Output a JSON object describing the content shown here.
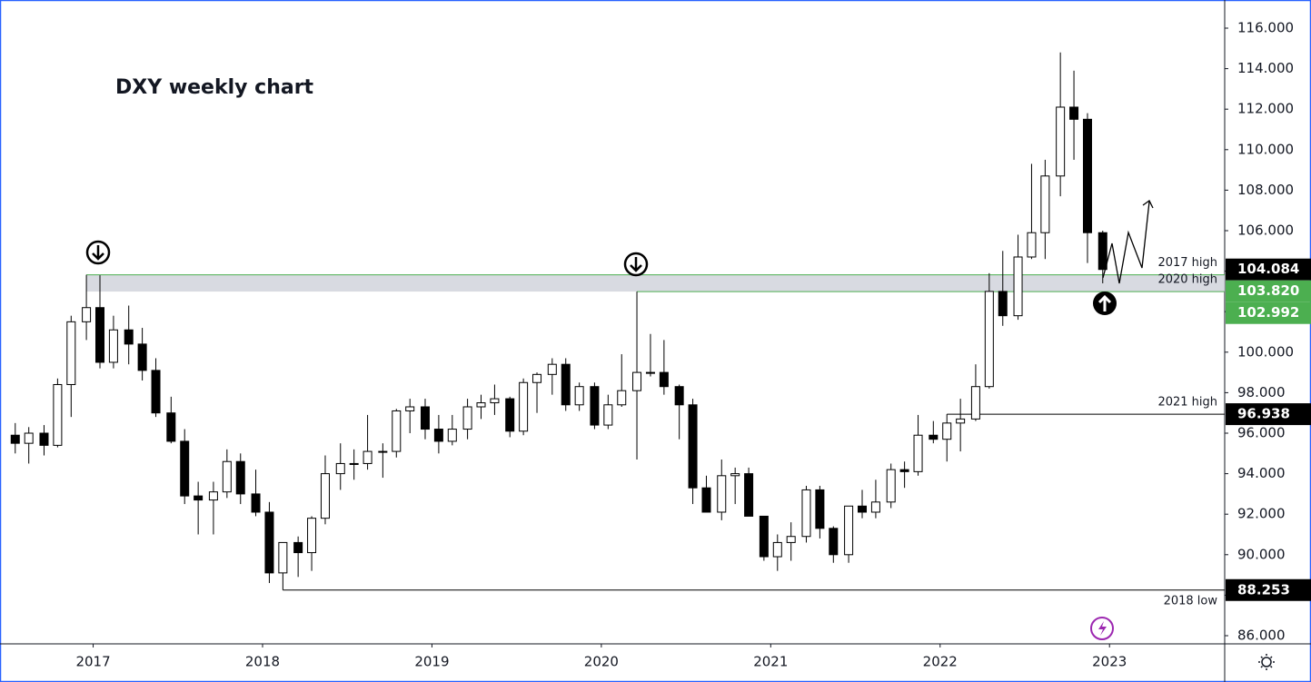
{
  "chart_data": {
    "type": "candlestick",
    "title": "DXY weekly chart",
    "x": [
      2016.54,
      2016.62,
      2016.71,
      2016.79,
      2016.87,
      2016.96,
      2017.04,
      2017.12,
      2017.21,
      2017.29,
      2017.37,
      2017.46,
      2017.54,
      2017.62,
      2017.71,
      2017.79,
      2017.87,
      2017.96,
      2018.04,
      2018.12,
      2018.21,
      2018.29,
      2018.37,
      2018.46,
      2018.54,
      2018.62,
      2018.71,
      2018.79,
      2018.87,
      2018.96,
      2019.04,
      2019.12,
      2019.21,
      2019.29,
      2019.37,
      2019.46,
      2019.54,
      2019.62,
      2019.71,
      2019.79,
      2019.87,
      2019.96,
      2020.04,
      2020.12,
      2020.21,
      2020.29,
      2020.37,
      2020.46,
      2020.54,
      2020.62,
      2020.71,
      2020.79,
      2020.87,
      2020.96,
      2021.04,
      2021.12,
      2021.21,
      2021.29,
      2021.37,
      2021.46,
      2021.54,
      2021.62,
      2021.71,
      2021.79,
      2021.87,
      2021.96,
      2022.04,
      2022.12,
      2022.21,
      2022.29,
      2022.37,
      2022.46,
      2022.54,
      2022.62,
      2022.71,
      2022.79,
      2022.87,
      2022.96
    ],
    "open": [
      95.9,
      95.5,
      96.0,
      95.4,
      98.4,
      101.5,
      102.2,
      99.5,
      101.1,
      100.4,
      99.1,
      97.0,
      95.6,
      92.9,
      92.7,
      93.1,
      94.6,
      93.0,
      92.1,
      89.1,
      90.6,
      90.1,
      91.8,
      94.0,
      94.5,
      94.5,
      95.1,
      95.1,
      97.1,
      97.3,
      96.2,
      95.6,
      96.2,
      97.3,
      97.5,
      97.7,
      96.1,
      98.5,
      98.9,
      99.4,
      97.4,
      98.3,
      96.4,
      97.4,
      98.1,
      99.0,
      99.0,
      98.3,
      97.4,
      93.3,
      92.1,
      93.9,
      94.0,
      91.9,
      89.9,
      90.6,
      90.9,
      93.2,
      91.3,
      90.0,
      92.4,
      92.1,
      92.6,
      94.2,
      94.1,
      95.9,
      95.7,
      96.5,
      96.7,
      98.3,
      103.0,
      101.8,
      104.7,
      105.9,
      108.7,
      112.1,
      111.5,
      105.9
    ],
    "high": [
      96.5,
      96.3,
      96.4,
      98.7,
      101.8,
      103.82,
      103.8,
      101.8,
      102.3,
      101.2,
      99.7,
      97.8,
      96.2,
      93.6,
      93.6,
      95.2,
      95.0,
      94.2,
      92.6,
      90.6,
      90.9,
      91.9,
      94.9,
      95.5,
      95.2,
      96.9,
      95.5,
      97.2,
      97.7,
      97.7,
      96.9,
      96.9,
      97.7,
      97.9,
      98.4,
      97.8,
      98.7,
      99.0,
      99.7,
      99.7,
      98.5,
      98.5,
      97.9,
      99.9,
      102.992,
      100.9,
      100.6,
      98.4,
      97.7,
      93.9,
      94.7,
      94.3,
      94.3,
      91.9,
      91.0,
      91.6,
      93.4,
      93.4,
      91.4,
      92.4,
      93.2,
      93.7,
      94.5,
      94.6,
      96.9,
      96.6,
      96.938,
      97.7,
      99.4,
      103.9,
      105.0,
      105.8,
      109.3,
      109.5,
      114.8,
      113.9,
      111.8,
      106.0
    ],
    "low": [
      95.0,
      94.5,
      94.9,
      95.3,
      96.8,
      100.6,
      99.2,
      99.2,
      99.4,
      98.6,
      96.8,
      95.5,
      92.5,
      91.0,
      91.0,
      92.8,
      92.5,
      91.9,
      88.6,
      88.253,
      88.9,
      89.2,
      91.5,
      93.2,
      93.7,
      94.2,
      93.8,
      94.8,
      96.0,
      95.7,
      95.0,
      95.4,
      95.7,
      96.7,
      96.9,
      95.8,
      95.9,
      97.0,
      97.9,
      97.1,
      97.1,
      96.2,
      96.2,
      97.3,
      94.7,
      98.8,
      97.9,
      95.7,
      92.5,
      92.1,
      91.7,
      92.5,
      91.9,
      89.7,
      89.2,
      89.7,
      90.6,
      90.8,
      89.6,
      89.6,
      91.8,
      91.8,
      92.3,
      93.3,
      93.9,
      95.5,
      94.6,
      95.1,
      96.6,
      98.2,
      101.3,
      101.6,
      104.6,
      104.6,
      107.7,
      109.5,
      104.4,
      103.4
    ],
    "close": [
      95.5,
      96.0,
      95.4,
      98.4,
      101.5,
      102.2,
      99.5,
      101.1,
      100.4,
      99.1,
      97.0,
      95.6,
      92.9,
      92.7,
      93.1,
      94.6,
      93.0,
      92.1,
      89.1,
      90.6,
      90.1,
      91.8,
      94.0,
      94.5,
      94.5,
      95.1,
      95.1,
      97.1,
      97.3,
      96.2,
      95.6,
      96.2,
      97.3,
      97.5,
      97.7,
      96.1,
      98.5,
      98.9,
      99.4,
      97.4,
      98.3,
      96.4,
      97.4,
      98.1,
      99.0,
      99.0,
      98.3,
      97.4,
      93.3,
      92.1,
      93.9,
      94.0,
      91.9,
      89.9,
      90.6,
      90.9,
      93.2,
      91.3,
      90.0,
      92.4,
      92.1,
      92.6,
      94.2,
      94.1,
      95.9,
      95.7,
      96.5,
      96.7,
      98.3,
      103.0,
      101.8,
      104.7,
      105.9,
      108.7,
      112.1,
      111.5,
      105.9,
      104.084
    ],
    "xlim": [
      2016.45,
      2023.68
    ],
    "xticks": [
      2017,
      2018,
      2019,
      2020,
      2021,
      2022,
      2023
    ],
    "ylim": [
      86,
      116
    ],
    "yticks": [
      {
        "value": 86,
        "label": "86.000"
      },
      {
        "value": 88,
        "label": "88.000"
      },
      {
        "value": 90,
        "label": "90.000"
      },
      {
        "value": 92,
        "label": "92.000"
      },
      {
        "value": 94,
        "label": "94.000"
      },
      {
        "value": 96,
        "label": "96.000"
      },
      {
        "value": 98,
        "label": "98.000"
      },
      {
        "value": 100,
        "label": "100.000"
      },
      {
        "value": 102,
        "label": "102.000"
      },
      {
        "value": 104,
        "label": "104.000"
      },
      {
        "value": 106,
        "label": "106.000"
      },
      {
        "value": 108,
        "label": "108.000"
      },
      {
        "value": 110,
        "label": "110.000"
      },
      {
        "value": 112,
        "label": "112.000"
      },
      {
        "value": 114,
        "label": "114.000"
      },
      {
        "value": 116,
        "label": "116.000"
      }
    ],
    "levels": [
      {
        "label": "2017 high",
        "value": 103.82,
        "tag": "103.820",
        "color": "#4caf50"
      },
      {
        "label": "2020 high",
        "value": 102.992,
        "tag": "102.992",
        "color": "#4caf50"
      },
      {
        "label": "2021 high",
        "value": 96.938,
        "tag": "96.938",
        "color": "#000000"
      },
      {
        "label": "2018 low",
        "value": 88.253,
        "tag": "88.253",
        "color": "#000000"
      }
    ]
  }
}
